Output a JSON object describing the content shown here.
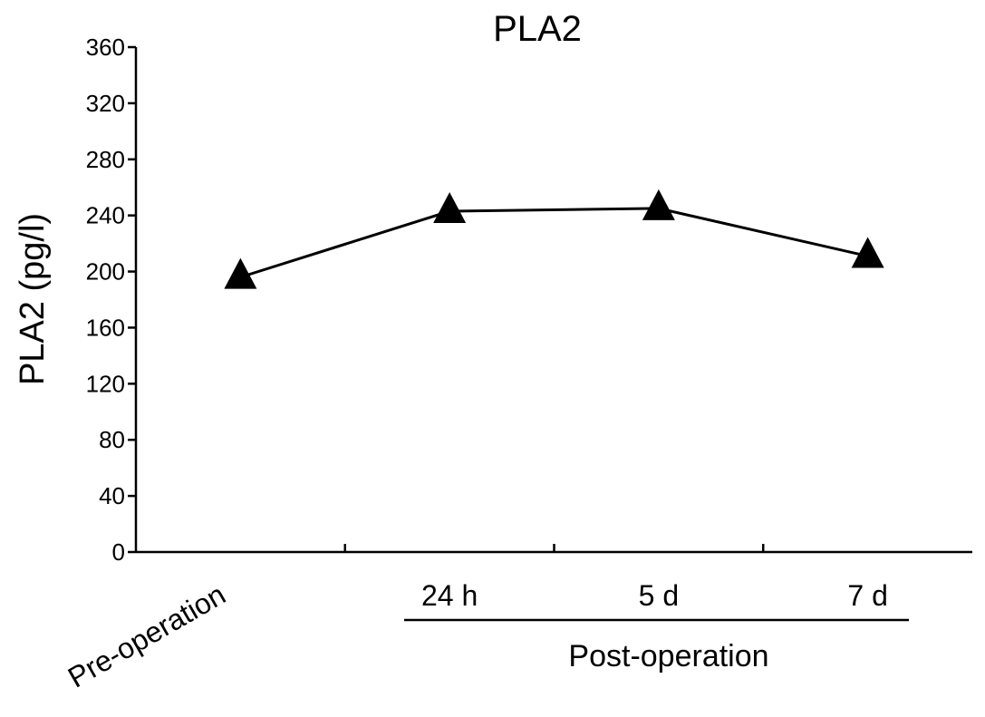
{
  "chart_data": {
    "type": "line",
    "title": "PLA2",
    "ylabel": "PLA2 (pg/l)",
    "xlabel": "",
    "categories": [
      "Pre-operation",
      "24 h",
      "5 d",
      "7 d"
    ],
    "category_group": {
      "label": "Post-operation",
      "members": [
        "24 h",
        "5 d",
        "7 d"
      ]
    },
    "yticks": [
      0,
      40,
      80,
      120,
      160,
      200,
      240,
      280,
      320,
      360
    ],
    "ylim": [
      0,
      360
    ],
    "series": [
      {
        "values": [
          196,
          243,
          245,
          211
        ],
        "marker": "triangle",
        "color": "#000000"
      }
    ],
    "grid": false,
    "legend": "none"
  }
}
